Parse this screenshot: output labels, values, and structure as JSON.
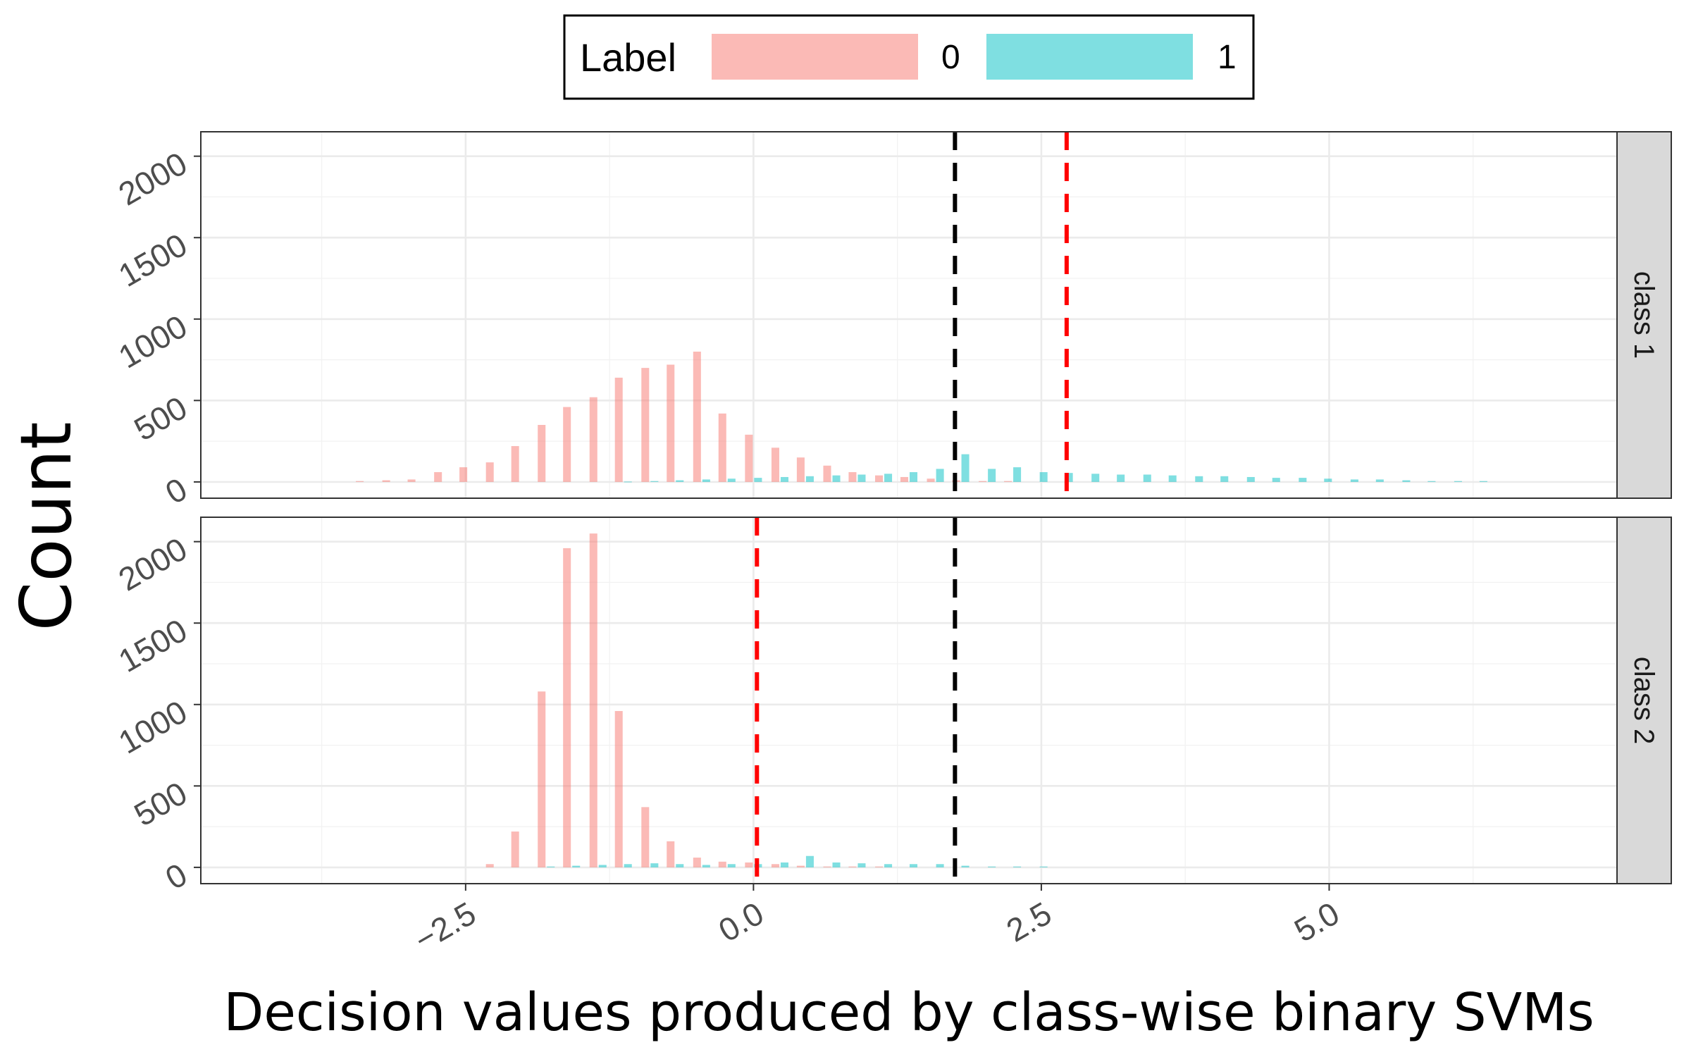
{
  "chart_data": {
    "type": "bar",
    "subtype": "faceted-histogram",
    "xlabel": "Decision values produced by class-wise binary SVMs",
    "ylabel": "Count",
    "xlim": [
      -4.8,
      7.5
    ],
    "x_ticks": [
      -2.5,
      0.0,
      2.5,
      5.0
    ],
    "x_tick_labels": [
      "−2.5",
      "0.0",
      "2.5",
      "5.0"
    ],
    "ylim": [
      -100,
      2150
    ],
    "y_ticks": [
      0,
      500,
      1000,
      1500,
      2000
    ],
    "y_tick_labels": [
      "0",
      "500",
      "1000",
      "1500",
      "2000"
    ],
    "grid": true,
    "legend": {
      "title": "Label",
      "placement": "top",
      "entries": [
        {
          "label": "0",
          "color": "#F8766D"
        },
        {
          "label": "1",
          "color": "#00BFC4"
        }
      ]
    },
    "colors": {
      "0": "#F8766D",
      "1": "#00BFC4",
      "bar_opacity": 0.5
    },
    "bin_width": 0.225,
    "x": [
      -3.38,
      -3.15,
      -2.93,
      -2.7,
      -2.48,
      -2.25,
      -2.03,
      -1.8,
      -1.58,
      -1.35,
      -1.13,
      -0.9,
      -0.68,
      -0.45,
      -0.23,
      0.0,
      0.23,
      0.45,
      0.68,
      0.9,
      1.13,
      1.35,
      1.58,
      1.8,
      2.03,
      2.25,
      2.48,
      2.7,
      2.93,
      3.15,
      3.38,
      3.6,
      3.83,
      4.05,
      4.28,
      4.5,
      4.73,
      4.95,
      5.18,
      5.4,
      5.63,
      5.85,
      6.08,
      6.3
    ],
    "facets": [
      {
        "label": "class 1",
        "vlines": [
          {
            "x": 1.75,
            "color": "#000000",
            "style": "dashed"
          },
          {
            "x": 2.72,
            "color": "#FF0000",
            "style": "dashed"
          }
        ],
        "series": [
          {
            "name": "0",
            "values": [
              5,
              10,
              15,
              60,
              90,
              120,
              220,
              350,
              460,
              520,
              640,
              700,
              720,
              800,
              420,
              290,
              210,
              150,
              100,
              60,
              40,
              30,
              20,
              10,
              5,
              5,
              0,
              0,
              0,
              0,
              0,
              0,
              0,
              0,
              0,
              0,
              0,
              0,
              0,
              0,
              0,
              0,
              0,
              0
            ]
          },
          {
            "name": "1",
            "values": [
              0,
              0,
              0,
              0,
              0,
              0,
              0,
              0,
              0,
              0,
              2,
              5,
              10,
              15,
              20,
              25,
              30,
              35,
              40,
              45,
              50,
              60,
              80,
              170,
              80,
              90,
              60,
              55,
              50,
              45,
              45,
              40,
              35,
              35,
              30,
              25,
              25,
              20,
              15,
              15,
              10,
              5,
              5,
              5
            ]
          }
        ]
      },
      {
        "label": "class 2",
        "vlines": [
          {
            "x": 1.75,
            "color": "#000000",
            "style": "dashed"
          },
          {
            "x": 0.03,
            "color": "#FF0000",
            "style": "dashed"
          }
        ],
        "series": [
          {
            "name": "0",
            "values": [
              0,
              0,
              0,
              0,
              0,
              20,
              220,
              1080,
              1960,
              2050,
              960,
              370,
              160,
              60,
              35,
              30,
              20,
              10,
              5,
              5,
              5,
              0,
              0,
              0,
              0,
              0,
              0,
              0,
              0,
              0,
              0,
              0,
              0,
              0,
              0,
              0,
              0,
              0,
              0,
              0,
              0,
              0,
              0,
              0
            ]
          },
          {
            "name": "1",
            "values": [
              0,
              0,
              0,
              0,
              0,
              0,
              0,
              5,
              10,
              15,
              20,
              25,
              20,
              15,
              20,
              20,
              30,
              70,
              30,
              25,
              20,
              20,
              20,
              10,
              5,
              5,
              5,
              0,
              0,
              0,
              0,
              0,
              0,
              0,
              0,
              0,
              0,
              0,
              0,
              0,
              0,
              0,
              0,
              0
            ]
          }
        ]
      }
    ]
  }
}
